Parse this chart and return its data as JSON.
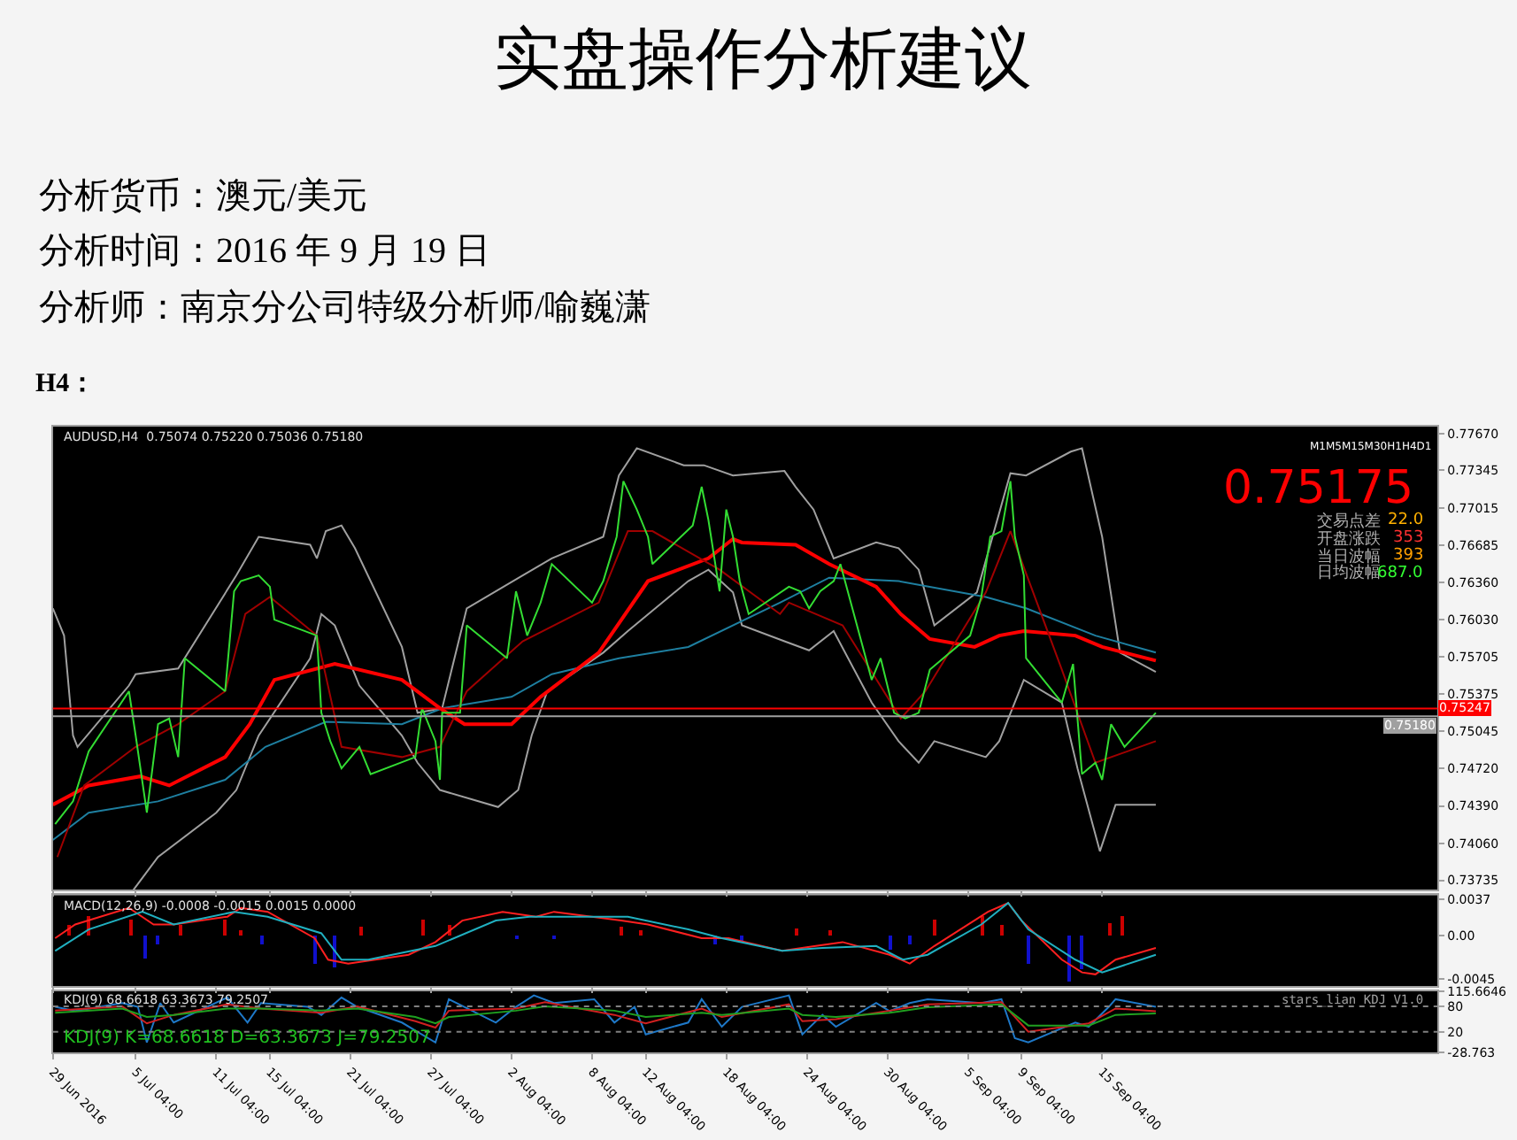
{
  "chart_data": [
    {
      "type": "line",
      "title": "实盘操作分析建议",
      "subtitle": "分析货币：澳元/美元",
      "annotations": [
        "分析时间：2016 年 9 月 19 日",
        "分析师：南京分公司特级分析师/喻巍潇",
        "H4：",
        "AUDUSD,H4  0.75074 0.75220 0.75036 0.75180",
        "M1M5M15M30H1H4D1",
        "0.75175",
        "交易点差",
        "22.0",
        "开盘涨跌",
        "353",
        "当日波幅",
        "393",
        "日均波幅",
        "687.0"
      ],
      "xlim": [
        "2016-06-29T00:00",
        "2016-10-10T04:00"
      ],
      "xticks": [
        {
          "value": "2016-06-29T00:00",
          "label": null
        },
        {
          "value": "2016-07-05T04:00",
          "label": null
        },
        {
          "value": "2016-07-11T04:00",
          "label": null
        },
        {
          "value": "2016-07-15T04:00",
          "label": null
        },
        {
          "value": "2016-07-21T04:00",
          "label": null
        },
        {
          "value": "2016-07-27T04:00",
          "label": null
        },
        {
          "value": "2016-08-02T04:00",
          "label": null
        },
        {
          "value": "2016-08-08T04:00",
          "label": null
        },
        {
          "value": "2016-08-12T04:00",
          "label": null
        },
        {
          "value": "2016-08-18T04:00",
          "label": null
        },
        {
          "value": "2016-08-24T04:00",
          "label": null
        },
        {
          "value": "2016-08-30T04:00",
          "label": null
        },
        {
          "value": "2016-09-05T04:00",
          "label": null
        },
        {
          "value": "2016-09-09T04:00",
          "label": null
        },
        {
          "value": "2016-09-15T04:00",
          "label": null
        }
      ],
      "ylim": [
        0.7365,
        0.7773
      ],
      "yticks": [
        {
          "value": 0.7767,
          "label": "0.77670"
        },
        {
          "value": 0.77345,
          "label": "0.77345"
        },
        {
          "value": 0.77015,
          "label": "0.77015"
        },
        {
          "value": 0.76685,
          "label": "0.76685"
        },
        {
          "value": 0.7636,
          "label": "0.76360"
        },
        {
          "value": 0.7603,
          "label": "0.76030"
        },
        {
          "value": 0.75705,
          "label": "0.75705"
        },
        {
          "value": 0.75375,
          "label": "0.75375"
        },
        {
          "value": 0.75045,
          "label": "0.75045"
        },
        {
          "value": 0.7472,
          "label": "0.74720"
        },
        {
          "value": 0.7439,
          "label": "0.74390"
        },
        {
          "value": 0.7406,
          "label": "0.74060"
        },
        {
          "value": 0.73735,
          "label": "0.73735"
        }
      ],
      "tick_labels": "y",
      "grid": false,
      "ref_lines": [
        {
          "axis": "y",
          "value": 0.75247,
          "label": "0.75247",
          "color": "#ff0000"
        },
        {
          "axis": "y",
          "value": 0.7518,
          "label": "0.75180",
          "color": "#a0a0a0"
        }
      ],
      "series": [
        {
          "color": "#a0a0a0",
          "x": [
            "2016-06-29T00:00",
            "2016-06-29T20:00",
            "2016-06-30T12:00",
            "2016-06-30T20:00",
            "2016-07-04T16:00",
            "2016-07-05T04:00",
            "2016-07-08T08:00",
            "2016-07-12T16:00",
            "2016-07-14T08:00",
            "2016-07-18T04:00",
            "2016-07-18T16:00",
            "2016-07-19T08:00",
            "2016-07-20T12:00",
            "2016-07-21T12:00",
            "2016-07-25T00:00",
            "2016-07-26T04:00",
            "2016-07-28T00:00",
            "2016-07-29T20:00",
            "2016-08-03T00:00",
            "2016-08-05T04:00",
            "2016-08-09T00:00",
            "2016-08-10T04:00",
            "2016-08-11T12:00",
            "2016-08-15T00:00",
            "2016-08-16T12:00",
            "2016-08-18T16:00",
            "2016-08-22T12:00",
            "2016-08-23T08:00",
            "2016-08-24T16:00",
            "2016-08-26T04:00",
            "2016-08-29T08:00",
            "2016-08-31T00:00",
            "2016-09-01T12:00",
            "2016-09-02T16:00",
            "2016-09-05T20:00",
            "2016-09-08T08:00",
            "2016-09-09T12:00",
            "2016-09-12T20:00",
            "2016-09-13T16:00",
            "2016-09-15T04:00",
            "2016-09-16T12:00",
            "2016-09-19T04:00"
          ],
          "values": [
            0.7613,
            0.7589,
            0.7501,
            0.7491,
            0.7545,
            0.7555,
            0.756,
            0.7642,
            0.7676,
            0.7669,
            0.7657,
            0.7681,
            0.7686,
            0.7666,
            0.7579,
            0.7521,
            0.7525,
            0.7613,
            0.7642,
            0.7657,
            0.7676,
            0.773,
            0.7754,
            0.7739,
            0.7739,
            0.773,
            0.7734,
            0.772,
            0.77,
            0.7657,
            0.7671,
            0.7666,
            0.7647,
            0.7598,
            0.7627,
            0.7732,
            0.773,
            0.7751,
            0.7754,
            0.7676,
            0.7574,
            0.7557
          ]
        },
        {
          "color": "#a0a0a0",
          "x": [
            "2016-07-05T00:00",
            "2016-07-06T20:00",
            "2016-07-11T04:00",
            "2016-07-12T16:00",
            "2016-07-14T08:00",
            "2016-07-18T04:00",
            "2016-07-19T00:00",
            "2016-07-20T00:00",
            "2016-07-21T20:00",
            "2016-07-25T00:00",
            "2016-07-26T04:00",
            "2016-07-27T20:00",
            "2016-08-01T04:00",
            "2016-08-02T16:00",
            "2016-08-03T16:00",
            "2016-08-04T20:00",
            "2016-08-09T00:00",
            "2016-08-10T20:00",
            "2016-08-15T08:00",
            "2016-08-16T20:00",
            "2016-08-18T16:00",
            "2016-08-19T08:00",
            "2016-08-22T12:00",
            "2016-08-24T08:00",
            "2016-08-26T04:00",
            "2016-08-29T00:00",
            "2016-08-31T00:00",
            "2016-09-01T12:00",
            "2016-09-02T16:00",
            "2016-09-06T12:00",
            "2016-09-07T12:00",
            "2016-09-09T08:00",
            "2016-09-12T04:00",
            "2016-09-13T08:00",
            "2016-09-15T00:00",
            "2016-09-16T04:00",
            "2016-09-19T04:00"
          ],
          "values": [
            0.7365,
            0.7394,
            0.7433,
            0.7453,
            0.7501,
            0.7569,
            0.7608,
            0.7598,
            0.7545,
            0.7501,
            0.7477,
            0.7453,
            0.7438,
            0.7453,
            0.7501,
            0.754,
            0.7574,
            0.7593,
            0.7637,
            0.7647,
            0.7627,
            0.7598,
            0.7584,
            0.7576,
            0.7593,
            0.753,
            0.7496,
            0.7477,
            0.7496,
            0.7482,
            0.7496,
            0.755,
            0.753,
            0.7472,
            0.7399,
            0.744,
            0.744
          ]
        },
        {
          "color": "#1e7fa0",
          "x": [
            "2016-06-29T00:00",
            "2016-07-01T16:00",
            "2016-07-06T20:00",
            "2016-07-11T20:00",
            "2016-07-14T20:00",
            "2016-07-19T08:00",
            "2016-07-25T00:00",
            "2016-07-28T00:00",
            "2016-08-02T04:00",
            "2016-08-05T04:00",
            "2016-08-10T04:00",
            "2016-08-15T08:00",
            "2016-08-22T04:00",
            "2016-08-25T20:00",
            "2016-08-31T00:00",
            "2016-09-06T12:00",
            "2016-09-09T12:00",
            "2016-09-14T16:00",
            "2016-09-19T04:00"
          ],
          "values": [
            0.7409,
            0.7433,
            0.7443,
            0.7462,
            0.7491,
            0.7513,
            0.7511,
            0.7525,
            0.7535,
            0.7555,
            0.7569,
            0.7579,
            0.7618,
            0.764,
            0.7637,
            0.7623,
            0.7613,
            0.7589,
            0.7574
          ]
        },
        {
          "color": "#ff0000",
          "x": [
            "2016-06-29T00:00",
            "2016-07-01T16:00",
            "2016-07-05T12:00",
            "2016-07-07T16:00",
            "2016-07-11T20:00",
            "2016-07-13T16:00",
            "2016-07-15T12:00",
            "2016-07-20T00:00",
            "2016-07-25T00:00",
            "2016-07-27T20:00",
            "2016-07-29T16:00",
            "2016-08-02T04:00",
            "2016-08-04T08:00",
            "2016-08-08T16:00",
            "2016-08-12T08:00",
            "2016-08-16T20:00",
            "2016-08-18T16:00",
            "2016-08-19T08:00",
            "2016-08-23T08:00",
            "2016-08-25T20:00",
            "2016-08-29T08:00",
            "2016-08-31T04:00",
            "2016-09-02T08:00",
            "2016-09-05T16:00",
            "2016-09-07T12:00",
            "2016-09-09T08:00",
            "2016-09-13T04:00",
            "2016-09-15T04:00",
            "2016-09-19T04:00"
          ],
          "values": [
            0.744,
            0.7457,
            0.7465,
            0.7457,
            0.7482,
            0.7511,
            0.755,
            0.7564,
            0.755,
            0.7525,
            0.7511,
            0.7511,
            0.7535,
            0.7574,
            0.7637,
            0.7657,
            0.7674,
            0.7671,
            0.7669,
            0.7652,
            0.7632,
            0.7608,
            0.7586,
            0.7579,
            0.7589,
            0.7593,
            0.7589,
            0.7579,
            0.7567
          ]
        },
        {
          "color": "#a00000",
          "x": [
            "2016-06-29T08:00",
            "2016-07-01T08:00",
            "2016-07-05T04:00",
            "2016-07-08T08:00",
            "2016-07-11T20:00",
            "2016-07-13T08:00",
            "2016-07-15T04:00",
            "2016-07-18T16:00",
            "2016-07-20T12:00",
            "2016-07-25T00:00",
            "2016-07-27T20:00",
            "2016-07-29T20:00",
            "2016-08-03T00:00",
            "2016-08-08T16:00",
            "2016-08-10T20:00",
            "2016-08-12T16:00",
            "2016-08-17T16:00",
            "2016-08-22T04:00",
            "2016-08-22T20:00",
            "2016-08-26T20:00",
            "2016-08-31T04:00",
            "2016-09-02T00:00",
            "2016-09-06T12:00",
            "2016-09-08T08:00",
            "2016-09-12T04:00",
            "2016-09-14T16:00",
            "2016-09-19T04:00"
          ],
          "values": [
            0.7394,
            0.7457,
            0.7491,
            0.7511,
            0.754,
            0.7608,
            0.7623,
            0.7589,
            0.7491,
            0.7482,
            0.7491,
            0.754,
            0.7584,
            0.7618,
            0.7681,
            0.7681,
            0.7647,
            0.7608,
            0.7618,
            0.7598,
            0.7516,
            0.754,
            0.7627,
            0.7681,
            0.7559,
            0.7477,
            0.7496
          ]
        },
        {
          "color": "#33dd33",
          "x": [
            "2016-06-29T04:00",
            "2016-06-30T12:00",
            "2016-07-01T16:00",
            "2016-07-04T16:00",
            "2016-07-05T04:00",
            "2016-07-06T00:00",
            "2016-07-06T20:00",
            "2016-07-07T16:00",
            "2016-07-08T08:00",
            "2016-07-08T20:00",
            "2016-07-11T20:00",
            "2016-07-12T12:00",
            "2016-07-13T00:00",
            "2016-07-14T08:00",
            "2016-07-15T04:00",
            "2016-07-15T12:00",
            "2016-07-18T16:00",
            "2016-07-19T00:00",
            "2016-07-19T16:00",
            "2016-07-20T12:00",
            "2016-07-21T20:00",
            "2016-07-22T16:00",
            "2016-07-26T00:00",
            "2016-07-26T12:00",
            "2016-07-27T12:00",
            "2016-07-27T20:00",
            "2016-07-28T00:00",
            "2016-07-29T08:00",
            "2016-07-29T20:00",
            "2016-08-01T20:00",
            "2016-08-02T12:00",
            "2016-08-03T08:00",
            "2016-08-04T08:00",
            "2016-08-05T04:00",
            "2016-08-08T04:00",
            "2016-08-09T00:00",
            "2016-08-10T00:00",
            "2016-08-10T12:00",
            "2016-08-11T12:00",
            "2016-08-12T08:00",
            "2016-08-12T16:00",
            "2016-08-15T16:00",
            "2016-08-16T08:00",
            "2016-08-16T20:00",
            "2016-08-17T16:00",
            "2016-08-18T04:00",
            "2016-08-18T16:00",
            "2016-08-19T04:00",
            "2016-08-19T20:00",
            "2016-08-22T20:00",
            "2016-08-23T16:00",
            "2016-08-24T08:00",
            "2016-08-25T04:00",
            "2016-08-26T04:00",
            "2016-08-26T16:00",
            "2016-08-29T00:00",
            "2016-08-29T16:00",
            "2016-08-30T16:00",
            "2016-08-31T12:00",
            "2016-09-01T12:00",
            "2016-09-02T08:00",
            "2016-09-05T08:00",
            "2016-09-06T04:00",
            "2016-09-06T20:00",
            "2016-09-07T16:00",
            "2016-09-08T08:00",
            "2016-09-08T16:00",
            "2016-09-09T08:00",
            "2016-09-09T12:00",
            "2016-09-12T04:00",
            "2016-09-13T00:00",
            "2016-09-13T16:00",
            "2016-09-14T16:00",
            "2016-09-15T04:00",
            "2016-09-15T20:00",
            "2016-09-16T20:00",
            "2016-09-19T04:00"
          ],
          "values": [
            0.7423,
            0.7443,
            0.7487,
            0.754,
            0.7501,
            0.7433,
            0.7511,
            0.7516,
            0.7482,
            0.7569,
            0.754,
            0.7628,
            0.7637,
            0.7642,
            0.7632,
            0.7603,
            0.7589,
            0.7521,
            0.7496,
            0.7472,
            0.7491,
            0.7467,
            0.7482,
            0.7525,
            0.7496,
            0.7462,
            0.7521,
            0.7521,
            0.7598,
            0.7569,
            0.7628,
            0.7589,
            0.7618,
            0.7652,
            0.7618,
            0.7637,
            0.7676,
            0.7725,
            0.77,
            0.7676,
            0.7652,
            0.7686,
            0.772,
            0.7691,
            0.7628,
            0.77,
            0.7676,
            0.7637,
            0.7608,
            0.7632,
            0.7628,
            0.7613,
            0.7628,
            0.7637,
            0.7652,
            0.755,
            0.7569,
            0.7521,
            0.7516,
            0.7521,
            0.7559,
            0.7589,
            0.7623,
            0.7676,
            0.7681,
            0.7725,
            0.7676,
            0.7642,
            0.7569,
            0.753,
            0.7564,
            0.7467,
            0.7477,
            0.7462,
            0.7511,
            0.7491,
            0.7521
          ]
        }
      ]
    },
    {
      "type": "line",
      "annotations": [
        "MACD(12,26,9) -0.0008 -0.0015 0.0015 0.0000"
      ],
      "xlim": [
        "2016-06-29T00:00",
        "2016-10-10T04:00"
      ],
      "xticks": [
        {
          "value": "2016-06-29T00:00",
          "label": null
        },
        {
          "value": "2016-07-05T04:00",
          "label": null
        },
        {
          "value": "2016-07-11T04:00",
          "label": null
        },
        {
          "value": "2016-07-15T04:00",
          "label": null
        },
        {
          "value": "2016-07-21T04:00",
          "label": null
        },
        {
          "value": "2016-07-27T04:00",
          "label": null
        },
        {
          "value": "2016-08-02T04:00",
          "label": null
        },
        {
          "value": "2016-08-08T04:00",
          "label": null
        },
        {
          "value": "2016-08-12T04:00",
          "label": null
        },
        {
          "value": "2016-08-18T04:00",
          "label": null
        },
        {
          "value": "2016-08-24T04:00",
          "label": null
        },
        {
          "value": "2016-08-30T04:00",
          "label": null
        },
        {
          "value": "2016-09-05T04:00",
          "label": null
        },
        {
          "value": "2016-09-09T04:00",
          "label": null
        },
        {
          "value": "2016-09-15T04:00",
          "label": null
        }
      ],
      "ylim": [
        -0.0052,
        0.0041
      ],
      "yticks": [
        0.0037,
        {
          "value": 0,
          "label": "0.00"
        },
        -0.0045
      ],
      "tick_labels": "y",
      "grid": false,
      "series": [
        {
          "type": "bar",
          "colors": [
            "#cc0000",
            "#cc0000",
            "#cc0000",
            "#1010cc",
            "#1010cc",
            "#cc0000",
            "#cc0000",
            "#cc0000",
            "#1010cc",
            "#1010cc",
            "#1010cc",
            "#cc0000",
            "#cc0000",
            "#cc0000",
            "#1010cc",
            "#1010cc",
            "#cc0000",
            "#cc0000",
            "#1010cc",
            "#1010cc",
            "#cc0000",
            "#cc0000",
            "#1010cc",
            "#1010cc",
            "#cc0000",
            "#cc0000",
            "#cc0000",
            "#1010cc",
            "#1010cc",
            "#1010cc",
            "#cc0000",
            "#cc0000"
          ],
          "x": [
            "2016-06-30T04:00",
            "2016-07-01T16:00",
            "2016-07-04T20:00",
            "2016-07-05T20:00",
            "2016-07-06T20:00",
            "2016-07-08T12:00",
            "2016-07-11T20:00",
            "2016-07-13T00:00",
            "2016-07-14T12:00",
            "2016-07-18T12:00",
            "2016-07-20T00:00",
            "2016-07-22T00:00",
            "2016-07-26T12:00",
            "2016-07-28T12:00",
            "2016-08-02T12:00",
            "2016-08-05T08:00",
            "2016-08-10T08:00",
            "2016-08-11T20:00",
            "2016-08-17T08:00",
            "2016-08-19T08:00",
            "2016-08-23T08:00",
            "2016-08-25T20:00",
            "2016-08-30T08:00",
            "2016-08-31T20:00",
            "2016-09-02T16:00",
            "2016-09-06T04:00",
            "2016-09-07T16:00",
            "2016-09-09T16:00",
            "2016-09-12T16:00",
            "2016-09-13T16:00",
            "2016-09-15T16:00",
            "2016-09-16T16:00"
          ],
          "values": [
            0.001,
            0.0019,
            0.0015,
            -0.0025,
            -0.001,
            0.001,
            0.0015,
            0.0005,
            -0.001,
            -0.003,
            -0.0033,
            0.0008,
            0.0015,
            0.001,
            -0.0005,
            -0.0005,
            0.0008,
            0.0005,
            -0.001,
            -0.0008,
            0.0007,
            0.0005,
            -0.0015,
            -0.001,
            0.0015,
            0.0019,
            0.001,
            -0.003,
            -0.0047,
            -0.0035,
            0.0012,
            0.0019
          ]
        },
        {
          "color": "#ff2020",
          "x": [
            "2016-06-29T04:00",
            "2016-06-30T16:00",
            "2016-07-04T16:00",
            "2016-07-06T12:00",
            "2016-07-08T00:00",
            "2016-07-12T00:00",
            "2016-07-13T00:00",
            "2016-07-15T00:00",
            "2016-07-18T12:00",
            "2016-07-19T12:00",
            "2016-07-21T00:00",
            "2016-07-25T12:00",
            "2016-07-27T12:00",
            "2016-07-29T12:00",
            "2016-08-01T12:00",
            "2016-08-04T00:00",
            "2016-08-05T08:00",
            "2016-08-10T08:00",
            "2016-08-12T08:00",
            "2016-08-16T08:00",
            "2016-08-18T08:00",
            "2016-08-22T08:00",
            "2016-08-24T20:00",
            "2016-08-26T20:00",
            "2016-08-30T08:00",
            "2016-08-31T20:00",
            "2016-09-02T16:00",
            "2016-09-06T16:00",
            "2016-09-08T04:00",
            "2016-09-09T04:00",
            "2016-09-12T04:00",
            "2016-09-13T16:00",
            "2016-09-14T16:00",
            "2016-09-16T04:00",
            "2016-09-19T04:00"
          ],
          "values": [
            -0.0003,
            0.0011,
            0.0028,
            0.0011,
            0.0011,
            0.0019,
            0.0028,
            0.0024,
            -0.0003,
            -0.0025,
            -0.0029,
            -0.002,
            -0.0007,
            0.0015,
            0.0024,
            0.0019,
            0.0024,
            0.0015,
            0.0011,
            -0.0003,
            -0.0003,
            -0.0016,
            -0.0011,
            -0.0007,
            -0.002,
            -0.0029,
            -0.0011,
            0.0024,
            0.0033,
            0.0015,
            -0.0025,
            -0.0038,
            -0.004,
            -0.0025,
            -0.0013
          ]
        },
        {
          "color": "#20b0c0",
          "x": [
            "2016-06-29T04:00",
            "2016-07-01T16:00",
            "2016-07-05T16:00",
            "2016-07-08T00:00",
            "2016-07-12T12:00",
            "2016-07-15T00:00",
            "2016-07-19T00:00",
            "2016-07-20T12:00",
            "2016-07-22T12:00",
            "2016-07-27T12:00",
            "2016-08-01T00:00",
            "2016-08-03T12:00",
            "2016-08-05T20:00",
            "2016-08-10T20:00",
            "2016-08-15T08:00",
            "2016-08-17T20:00",
            "2016-08-22T08:00",
            "2016-08-25T08:00",
            "2016-08-29T08:00",
            "2016-08-31T08:00",
            "2016-09-02T04:00",
            "2016-09-06T04:00",
            "2016-09-08T04:00",
            "2016-09-09T16:00",
            "2016-09-13T04:00",
            "2016-09-15T04:00",
            "2016-09-19T04:00"
          ],
          "values": [
            -0.0016,
            0.0006,
            0.0024,
            0.0011,
            0.0024,
            0.0019,
            0.0002,
            -0.0025,
            -0.0025,
            -0.0011,
            0.0015,
            0.0019,
            0.0019,
            0.0019,
            0.0006,
            -0.0003,
            -0.0016,
            -0.0013,
            -0.0011,
            -0.0025,
            -0.002,
            0.0011,
            0.0033,
            0.0006,
            -0.0025,
            -0.0038,
            -0.002
          ]
        }
      ]
    },
    {
      "type": "line",
      "annotations": [
        "KDJ(9) 68.6618 63.3673 79.2507",
        "KDJ(9) K=68.6618 D=63.3673 J=79.2507",
        "stars_lian KDJ V1.0"
      ],
      "xlim": [
        "2016-06-29T00:00",
        "2016-10-10T04:00"
      ],
      "xticks": [
        {
          "value": "2016-06-29T00:00",
          "label": "29 Jun 2016"
        },
        {
          "value": "2016-07-05T04:00",
          "label": "5 Jul 04:00"
        },
        {
          "value": "2016-07-11T04:00",
          "label": "11 Jul 04:00"
        },
        {
          "value": "2016-07-15T04:00",
          "label": "15 Jul 04:00"
        },
        {
          "value": "2016-07-21T04:00",
          "label": "21 Jul 04:00"
        },
        {
          "value": "2016-07-27T04:00",
          "label": "27 Jul 04:00"
        },
        {
          "value": "2016-08-02T04:00",
          "label": "2 Aug 04:00"
        },
        {
          "value": "2016-08-08T04:00",
          "label": "8 Aug 04:00"
        },
        {
          "value": "2016-08-12T04:00",
          "label": "12 Aug 04:00"
        },
        {
          "value": "2016-08-18T04:00",
          "label": "18 Aug 04:00"
        },
        {
          "value": "2016-08-24T04:00",
          "label": "24 Aug 04:00"
        },
        {
          "value": "2016-08-30T04:00",
          "label": "30 Aug 04:00"
        },
        {
          "value": "2016-09-05T04:00",
          "label": "5 Sep 04:00"
        },
        {
          "value": "2016-09-09T04:00",
          "label": "9 Sep 04:00"
        },
        {
          "value": "2016-09-15T04:00",
          "label": "15 Sep 04:00"
        }
      ],
      "ylim": [
        -28.763,
        115.6646
      ],
      "yticks": [
        115.6646,
        80,
        20,
        -28.763
      ],
      "grid": false,
      "ref_lines": [
        {
          "axis": "y",
          "value": 80,
          "color": "#808080",
          "line_style": "dotted"
        },
        {
          "axis": "y",
          "value": 20,
          "color": "#808080",
          "line_style": "dotted"
        }
      ],
      "series": [
        {
          "color": "#1e78c8",
          "x": [
            "2016-06-29T04:00",
            "2016-06-30T16:00",
            "2016-07-04T04:00",
            "2016-07-05T08:00",
            "2016-07-06T00:00",
            "2016-07-07T00:00",
            "2016-07-08T00:00",
            "2016-07-12T00:00",
            "2016-07-13T12:00",
            "2016-07-14T12:00",
            "2016-07-18T00:00",
            "2016-07-19T00:00",
            "2016-07-20T12:00",
            "2016-07-21T16:00",
            "2016-07-25T00:00",
            "2016-07-26T00:00",
            "2016-07-27T12:00",
            "2016-07-28T12:00",
            "2016-08-01T00:00",
            "2016-08-02T12:00",
            "2016-08-03T20:00",
            "2016-08-05T08:00",
            "2016-08-08T08:00",
            "2016-08-09T20:00",
            "2016-08-11T08:00",
            "2016-08-12T04:00",
            "2016-08-15T08:00",
            "2016-08-16T08:00",
            "2016-08-17T20:00",
            "2016-08-19T08:00",
            "2016-08-22T20:00",
            "2016-08-23T20:00",
            "2016-08-25T08:00",
            "2016-08-26T08:00",
            "2016-08-29T08:00",
            "2016-08-30T08:00",
            "2016-08-31T20:00",
            "2016-09-02T04:00",
            "2016-09-06T04:00",
            "2016-09-07T16:00",
            "2016-09-08T16:00",
            "2016-09-09T16:00",
            "2016-09-13T04:00",
            "2016-09-14T04:00",
            "2016-09-15T16:00",
            "2016-09-16T04:00",
            "2016-09-19T04:00"
          ],
          "values": [
            79,
            69,
            88,
            79,
            -5,
            88,
            42,
            101,
            42,
            88,
            79,
            60,
            101,
            79,
            42,
            23,
            -5,
            97,
            42,
            79,
            106,
            88,
            97,
            42,
            79,
            14,
            42,
            97,
            32,
            79,
            106,
            14,
            60,
            32,
            88,
            69,
            88,
            97,
            88,
            97,
            5,
            -5,
            42,
            32,
            79,
            97,
            79.2507
          ]
        },
        {
          "color": "#d02020",
          "x": [
            "2016-06-29T04:00",
            "2016-07-04T04:00",
            "2016-07-06T00:00",
            "2016-07-08T00:00",
            "2016-07-12T00:00",
            "2016-07-14T12:00",
            "2016-07-19T00:00",
            "2016-07-21T16:00",
            "2016-07-26T00:00",
            "2016-07-27T12:00",
            "2016-07-28T12:00",
            "2016-08-02T12:00",
            "2016-08-04T16:00",
            "2016-08-09T20:00",
            "2016-08-12T04:00",
            "2016-08-16T08:00",
            "2016-08-17T20:00",
            "2016-08-22T20:00",
            "2016-08-23T20:00",
            "2016-08-26T08:00",
            "2016-08-30T08:00",
            "2016-09-02T04:00",
            "2016-09-07T16:00",
            "2016-09-09T16:00",
            "2016-09-14T04:00",
            "2016-09-16T04:00",
            "2016-09-19T04:00"
          ],
          "values": [
            70,
            80,
            40,
            60,
            85,
            75,
            65,
            80,
            45,
            30,
            70,
            75,
            90,
            60,
            40,
            75,
            55,
            85,
            45,
            50,
            70,
            85,
            90,
            20,
            40,
            75,
            68.6618
          ]
        },
        {
          "color": "#20a020",
          "x": [
            "2016-06-29T04:00",
            "2016-07-04T04:00",
            "2016-07-06T00:00",
            "2016-07-08T00:00",
            "2016-07-12T00:00",
            "2016-07-14T12:00",
            "2016-07-19T00:00",
            "2016-07-21T16:00",
            "2016-07-26T00:00",
            "2016-07-27T12:00",
            "2016-07-28T12:00",
            "2016-08-02T12:00",
            "2016-08-04T16:00",
            "2016-08-09T20:00",
            "2016-08-12T04:00",
            "2016-08-16T08:00",
            "2016-08-17T20:00",
            "2016-08-22T20:00",
            "2016-08-23T20:00",
            "2016-08-26T08:00",
            "2016-08-30T08:00",
            "2016-09-02T04:00",
            "2016-09-07T16:00",
            "2016-09-09T16:00",
            "2016-09-14T04:00",
            "2016-09-16T04:00",
            "2016-09-19T04:00"
          ],
          "values": [
            65,
            75,
            55,
            60,
            75,
            75,
            70,
            75,
            55,
            40,
            55,
            70,
            80,
            70,
            55,
            65,
            60,
            75,
            60,
            55,
            65,
            78,
            85,
            35,
            35,
            60,
            63.3673
          ]
        }
      ]
    }
  ]
}
